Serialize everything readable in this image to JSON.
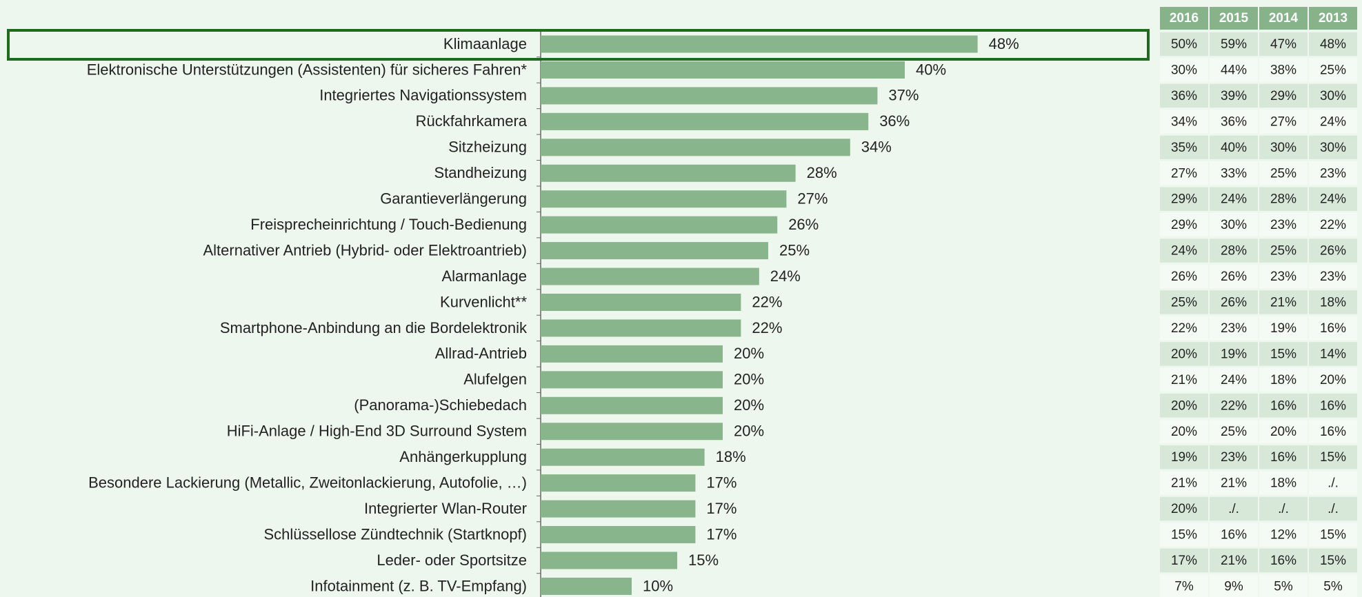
{
  "chart_data": {
    "type": "bar",
    "orientation": "horizontal",
    "color": "#88b58b",
    "categories": [
      "Klimaanlage",
      "Elektronische Unterstützungen (Assistenten) für sicheres Fahren*",
      "Integriertes Navigationssystem",
      "Rückfahrkamera",
      "Sitzheizung",
      "Standheizung",
      "Garantieverlängerung",
      "Freisprecheinrichtung / Touch-Bedienung",
      "Alternativer Antrieb (Hybrid- oder Elektroantrieb)",
      "Alarmanlage",
      "Kurvenlicht**",
      "Smartphone-Anbindung an die Bordelektronik",
      "Allrad-Antrieb",
      "Alufelgen",
      "(Panorama-)Schiebedach",
      "HiFi-Anlage / High-End 3D Surround System",
      "Anhängerkupplung",
      "Besondere Lackierung (Metallic, Zweitonlackierung, Autofolie, …)",
      "Integrierter Wlan-Router",
      "Schlüssellose Zündtechnik (Startknopf)",
      "Leder- oder Sportsitze",
      "Infotainment (z. B. TV-Empfang)"
    ],
    "values": [
      48,
      40,
      37,
      36,
      34,
      28,
      27,
      26,
      25,
      24,
      22,
      22,
      20,
      20,
      20,
      20,
      18,
      17,
      17,
      17,
      15,
      10
    ],
    "value_labels": [
      "48%",
      "40%",
      "37%",
      "36%",
      "34%",
      "28%",
      "27%",
      "26%",
      "25%",
      "24%",
      "22%",
      "22%",
      "20%",
      "20%",
      "20%",
      "20%",
      "18%",
      "17%",
      "17%",
      "17%",
      "15%",
      "10%"
    ],
    "table": {
      "columns": [
        "2016",
        "2015",
        "2014",
        "2013"
      ],
      "rows": [
        [
          "50%",
          "59%",
          "47%",
          "48%"
        ],
        [
          "30%",
          "44%",
          "38%",
          "25%"
        ],
        [
          "36%",
          "39%",
          "29%",
          "30%"
        ],
        [
          "34%",
          "36%",
          "27%",
          "24%"
        ],
        [
          "35%",
          "40%",
          "30%",
          "30%"
        ],
        [
          "27%",
          "33%",
          "25%",
          "23%"
        ],
        [
          "29%",
          "24%",
          "28%",
          "24%"
        ],
        [
          "29%",
          "30%",
          "23%",
          "22%"
        ],
        [
          "24%",
          "28%",
          "25%",
          "26%"
        ],
        [
          "26%",
          "26%",
          "23%",
          "23%"
        ],
        [
          "25%",
          "26%",
          "21%",
          "18%"
        ],
        [
          "22%",
          "23%",
          "19%",
          "16%"
        ],
        [
          "20%",
          "19%",
          "15%",
          "14%"
        ],
        [
          "21%",
          "24%",
          "18%",
          "20%"
        ],
        [
          "20%",
          "22%",
          "16%",
          "16%"
        ],
        [
          "20%",
          "25%",
          "20%",
          "16%"
        ],
        [
          "19%",
          "23%",
          "16%",
          "15%"
        ],
        [
          "21%",
          "21%",
          "18%",
          "./."
        ],
        [
          "20%",
          "./.",
          "./.",
          "./."
        ],
        [
          "15%",
          "16%",
          "12%",
          "15%"
        ],
        [
          "17%",
          "21%",
          "16%",
          "15%"
        ],
        [
          "7%",
          "9%",
          "5%",
          "5%"
        ]
      ]
    }
  }
}
